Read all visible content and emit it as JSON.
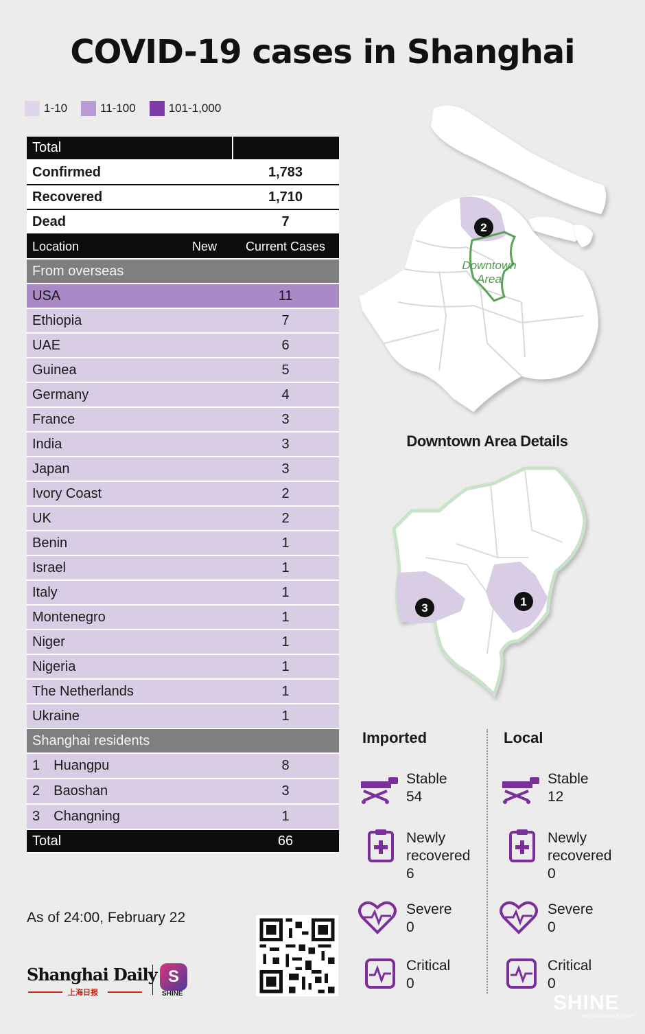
{
  "title": "COVID-19 cases in Shanghai",
  "legend": [
    {
      "label": "1-10",
      "color": "#e0d6ea"
    },
    {
      "label": "11-100",
      "color": "#b89bd2"
    },
    {
      "label": "101-1,000",
      "color": "#7d3ba6"
    }
  ],
  "totals": {
    "header": "Total",
    "rows": [
      {
        "label": "Confirmed",
        "value": "1,783"
      },
      {
        "label": "Recovered",
        "value": "1,710"
      },
      {
        "label": "Dead",
        "value": "7"
      }
    ]
  },
  "columns": {
    "location": "Location",
    "new": "New",
    "current": "Current Cases"
  },
  "overseas": {
    "header": "From overseas",
    "rows": [
      {
        "name": "USA",
        "value": "11"
      },
      {
        "name": "Ethiopia",
        "value": "7"
      },
      {
        "name": "UAE",
        "value": "6"
      },
      {
        "name": "Guinea",
        "value": "5"
      },
      {
        "name": "Germany",
        "value": "4"
      },
      {
        "name": "France",
        "value": "3"
      },
      {
        "name": "India",
        "value": "3"
      },
      {
        "name": "Japan",
        "value": "3"
      },
      {
        "name": "Ivory Coast",
        "value": "2"
      },
      {
        "name": "UK",
        "value": "2"
      },
      {
        "name": "Benin",
        "value": "1"
      },
      {
        "name": "Israel",
        "value": "1"
      },
      {
        "name": "Italy",
        "value": "1"
      },
      {
        "name": "Montenegro",
        "value": "1"
      },
      {
        "name": "Niger",
        "value": "1"
      },
      {
        "name": "Nigeria",
        "value": "1"
      },
      {
        "name": "The Netherlands",
        "value": "1"
      },
      {
        "name": "Ukraine",
        "value": "1"
      }
    ]
  },
  "residents": {
    "header": "Shanghai residents",
    "rows": [
      {
        "num": "1",
        "name": "Huangpu",
        "value": "8"
      },
      {
        "num": "2",
        "name": "Baoshan",
        "value": "3"
      },
      {
        "num": "3",
        "name": "Changning",
        "value": "1"
      }
    ]
  },
  "grand_total": {
    "label": "Total",
    "value": "66"
  },
  "map": {
    "downtown_label_line1": "Downtown",
    "downtown_label_line2": "Area",
    "marker_top": "2",
    "downtown_details_title": "Downtown Area Details",
    "marker_left": "3",
    "marker_right": "1",
    "land_color": "#ffffff",
    "highlight_color": "#d9cde6",
    "downtown_outline_color": "#5ba35b"
  },
  "status": {
    "accent": "#7b2f9a",
    "imported": {
      "header": "Imported",
      "items": [
        {
          "icon": "hospital-bed-icon",
          "label": "Stable",
          "value": "54"
        },
        {
          "icon": "medical-clipboard-icon",
          "label_1": "Newly",
          "label_2": "recovered",
          "value": "6"
        },
        {
          "icon": "heartbeat-heart-icon",
          "label": "Severe",
          "value": "0"
        },
        {
          "icon": "ecg-monitor-icon",
          "label": "Critical",
          "value": "0"
        }
      ]
    },
    "local": {
      "header": "Local",
      "items": [
        {
          "icon": "hospital-bed-icon",
          "label": "Stable",
          "value": "12"
        },
        {
          "icon": "medical-clipboard-icon",
          "label_1": "Newly",
          "label_2": "recovered",
          "value": "0"
        },
        {
          "icon": "heartbeat-heart-icon",
          "label": "Severe",
          "value": "0"
        },
        {
          "icon": "ecg-monitor-icon",
          "label": "Critical",
          "value": "0"
        }
      ]
    }
  },
  "as_of": "As of 24:00, February 22",
  "brand": {
    "name": "Shanghai Daily",
    "sub": "上海日报",
    "shine_badge": "S",
    "shine_badge_label": "SHINE",
    "shine_logo": "SHINE",
    "shine_tagline": "BEYOND A SINGLE STORY"
  }
}
